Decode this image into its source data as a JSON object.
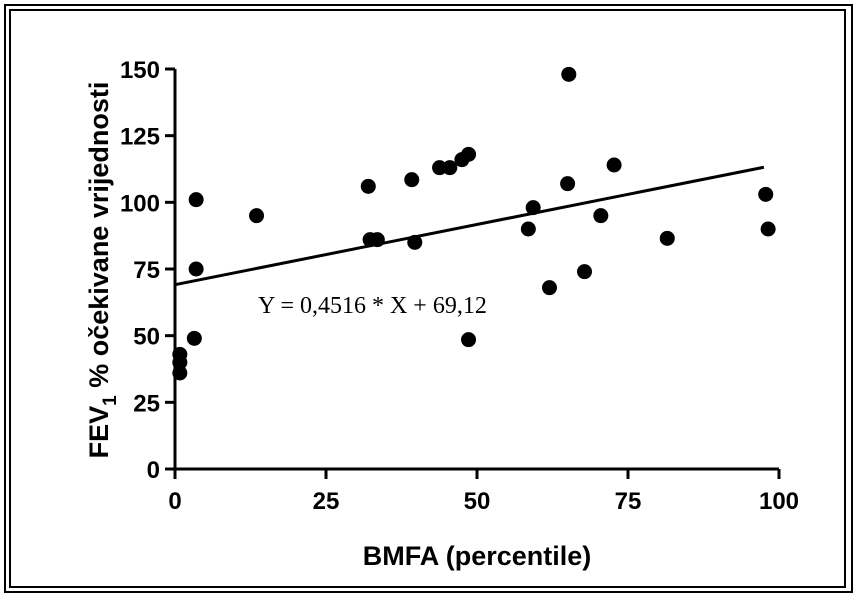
{
  "chart_data": {
    "type": "scatter",
    "title": "",
    "xlabel": "BMFA (percentile)",
    "ylabel": "FEV₁ % očekivane vrijednosti",
    "ylabel_parts": {
      "pre": "FEV",
      "sub": "1",
      "post": " % očekivane vrijednosti"
    },
    "xlim": [
      0,
      100
    ],
    "ylim": [
      0,
      150
    ],
    "xticks": [
      0,
      25,
      50,
      75,
      100
    ],
    "yticks": [
      0,
      25,
      50,
      75,
      100,
      125,
      150
    ],
    "grid": false,
    "marker_color": "#000000",
    "points": [
      {
        "x": 0.8,
        "y": 43
      },
      {
        "x": 0.8,
        "y": 40
      },
      {
        "x": 0.8,
        "y": 36
      },
      {
        "x": 3.2,
        "y": 49
      },
      {
        "x": 3.5,
        "y": 75
      },
      {
        "x": 3.5,
        "y": 101
      },
      {
        "x": 13.5,
        "y": 95
      },
      {
        "x": 32,
        "y": 106
      },
      {
        "x": 32.3,
        "y": 86
      },
      {
        "x": 33.5,
        "y": 86
      },
      {
        "x": 39.2,
        "y": 108.5
      },
      {
        "x": 39.7,
        "y": 85
      },
      {
        "x": 43.8,
        "y": 113
      },
      {
        "x": 45.5,
        "y": 113
      },
      {
        "x": 47.5,
        "y": 116
      },
      {
        "x": 48.6,
        "y": 118
      },
      {
        "x": 48.6,
        "y": 48.5
      },
      {
        "x": 58.5,
        "y": 90
      },
      {
        "x": 59.3,
        "y": 98
      },
      {
        "x": 62,
        "y": 68
      },
      {
        "x": 65,
        "y": 107
      },
      {
        "x": 65.2,
        "y": 148
      },
      {
        "x": 67.8,
        "y": 74
      },
      {
        "x": 70.5,
        "y": 95
      },
      {
        "x": 72.7,
        "y": 114
      },
      {
        "x": 81.5,
        "y": 86.5
      },
      {
        "x": 97.8,
        "y": 103
      },
      {
        "x": 98.2,
        "y": 90
      }
    ],
    "regression": {
      "slope": 0.4516,
      "intercept": 69.12,
      "x_range": [
        0,
        97.5
      ]
    },
    "annotation": "Y = 0,4516 * X + 69,12"
  }
}
